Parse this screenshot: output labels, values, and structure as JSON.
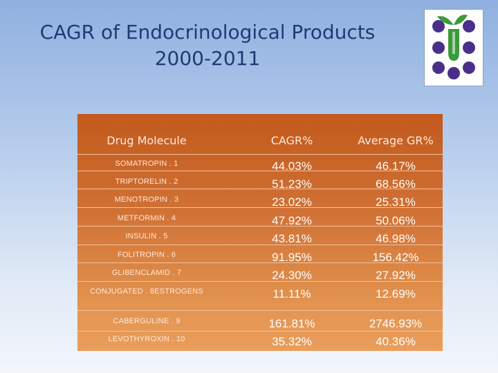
{
  "title": {
    "line1": "CAGR of Endocrinological Products",
    "line2": "2000-2011"
  },
  "logo": {
    "icon": "plant-sprout-logo",
    "colors": {
      "dot": "#4a2f8a",
      "sprout": "#3d9a3a"
    }
  },
  "table": {
    "headers": [
      "Drug Molecule",
      "CAGR%",
      "Average GR%"
    ],
    "rows": [
      {
        "drug": "SOMATROPIN . 1",
        "cagr": "44.03%",
        "avg": "46.17%"
      },
      {
        "drug": "TRIPTORELIN . 2",
        "cagr": "51.23%",
        "avg": "68.56%"
      },
      {
        "drug": "MENOTROPIN . 3",
        "cagr": "23.02%",
        "avg": "25.31%"
      },
      {
        "drug": "METFORMIN . 4",
        "cagr": "47.92%",
        "avg": "50.06%"
      },
      {
        "drug": "INSULIN . 5",
        "cagr": "43.81%",
        "avg": "46.98%"
      },
      {
        "drug": "FOLITROPIN . 6",
        "cagr": "91.95%",
        "avg": "156.42%"
      },
      {
        "drug": "GLIBENCLAMID . 7",
        "cagr": "24.30%",
        "avg": "27.92%"
      },
      {
        "drug": "CONJUGATED . 8ESTROGENS",
        "cagr": "11.11%",
        "avg": "12.69%"
      },
      {
        "drug": "CABERGULINE . 9",
        "cagr": "161.81%",
        "avg": "2746.93%"
      },
      {
        "drug": "LEVOTHYROXIN . 10",
        "cagr": "35.32%",
        "avg": "40.36%"
      }
    ]
  }
}
